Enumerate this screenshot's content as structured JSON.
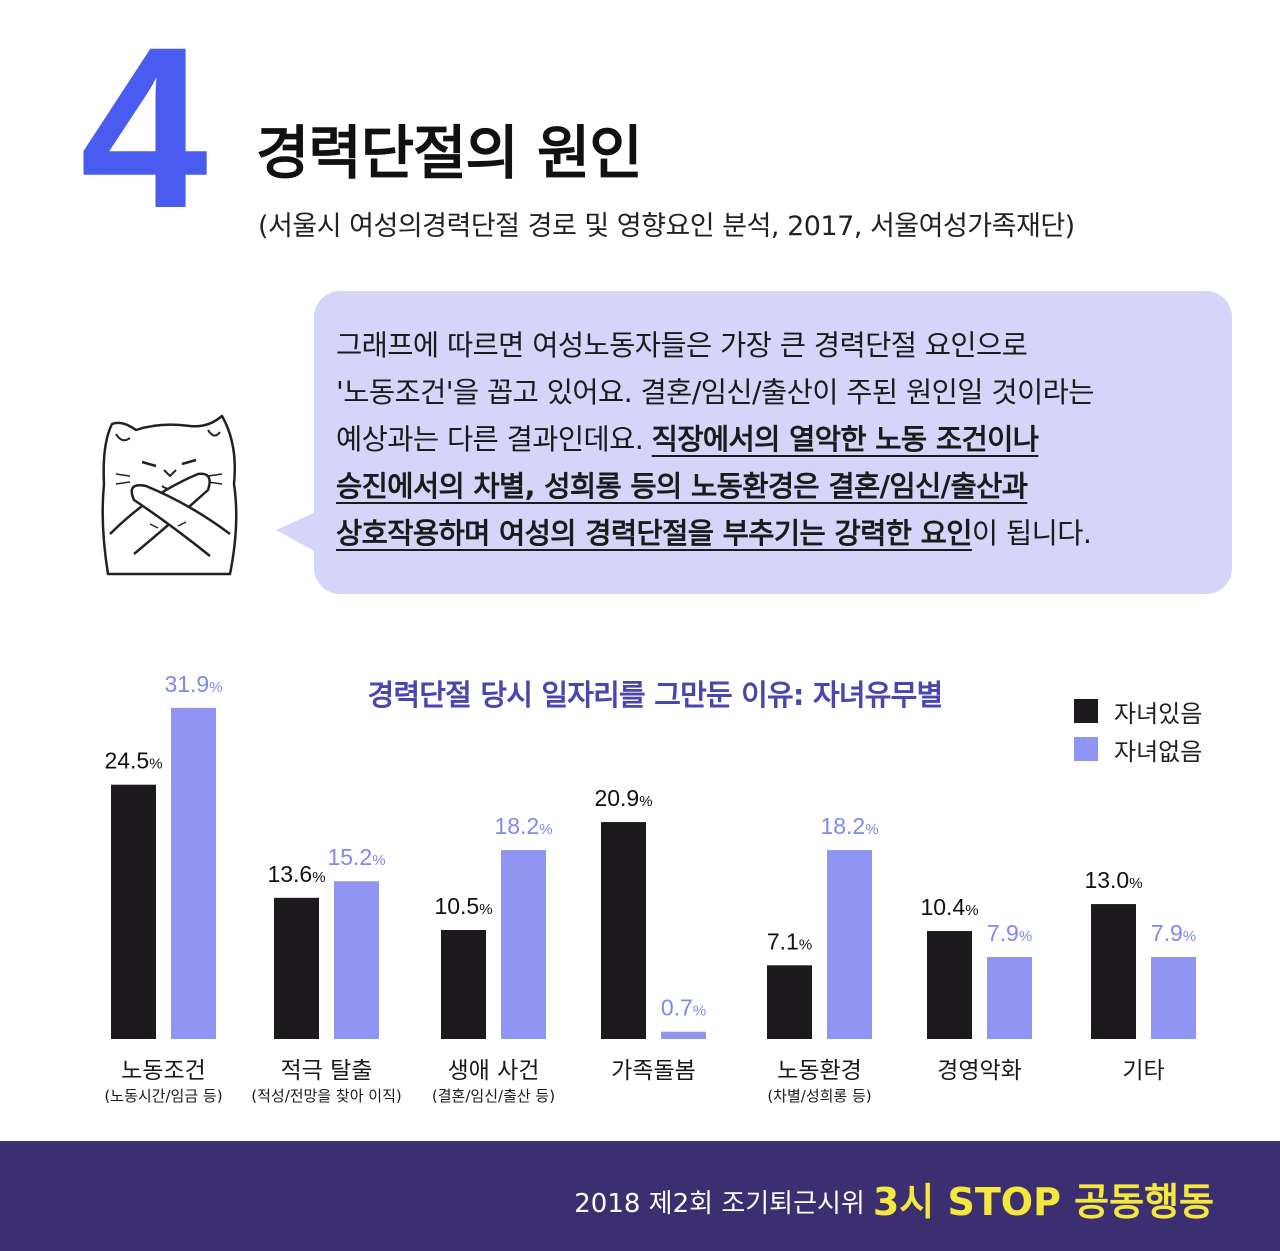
{
  "header": {
    "number": "4",
    "title": "경력단절의 원인",
    "source": "(서울시 여성의경력단절 경로 및 영향요인 분석, 2017, 서울여성가족재단)"
  },
  "bubble": {
    "line1": "그래프에 따르면 여성노동자들은 가장 큰 경력단절 요인으로",
    "line2": "'노동조건'을 꼽고 있어요. 결혼/임신/출산이 주된 원인일 것이라는",
    "line3_plain": "예상과는 다른 결과인데요. ",
    "line3_ul": "직장에서의 열악한 노동 조건이나",
    "line4_ul": "승진에서의 차별, 성희롱 등의 노동환경은 결혼/임신/출산과",
    "line5_ul": "상호작용하며 여성의 경력단절을 부추기는 강력한 요인",
    "line5_plain": "이 됩니다."
  },
  "colors": {
    "accent": "#4a5cf0",
    "series_with_children": "#1c1a1d",
    "series_without_children": "#9095f3",
    "label_with_children": "#111111",
    "label_without_children": "#8088ee",
    "footer_bg": "#3b2f72",
    "footer_highlight": "#f5e83c",
    "bubble_bg": "#d4d5f8"
  },
  "chart_data": {
    "type": "bar",
    "title": "경력단절 당시 일자리를 그만둔 이유: 자녀유무별",
    "categories": [
      "노동조건",
      "적극 탈출",
      "생애 사건",
      "가족돌봄",
      "노동환경",
      "경영악화",
      "기타"
    ],
    "category_notes": [
      "(노동시간/임금 등)",
      "(적성/전망을 찾아 이직)",
      "(결혼/임신/출산 등)",
      "",
      "(차별/성희롱 등)",
      "",
      ""
    ],
    "series": [
      {
        "name": "자녀있음",
        "values": [
          24.5,
          13.6,
          10.5,
          20.9,
          7.1,
          10.4,
          13.0
        ],
        "labels": [
          "24.5",
          "13.6",
          "10.5",
          "20.9",
          "7.1",
          "10.4",
          "13.0"
        ]
      },
      {
        "name": "자녀없음",
        "values": [
          31.9,
          15.2,
          18.2,
          0.7,
          18.2,
          7.9,
          7.9
        ],
        "labels": [
          "31.9",
          "15.2",
          "18.2",
          "0.7",
          "18.2",
          "7.9",
          "7.9"
        ]
      }
    ],
    "unit": "%",
    "legend_position": "top-right",
    "grid": false
  },
  "footer": {
    "text": "2018 제2회 조기퇴근시위",
    "highlight": "3시 STOP 공동행동"
  }
}
